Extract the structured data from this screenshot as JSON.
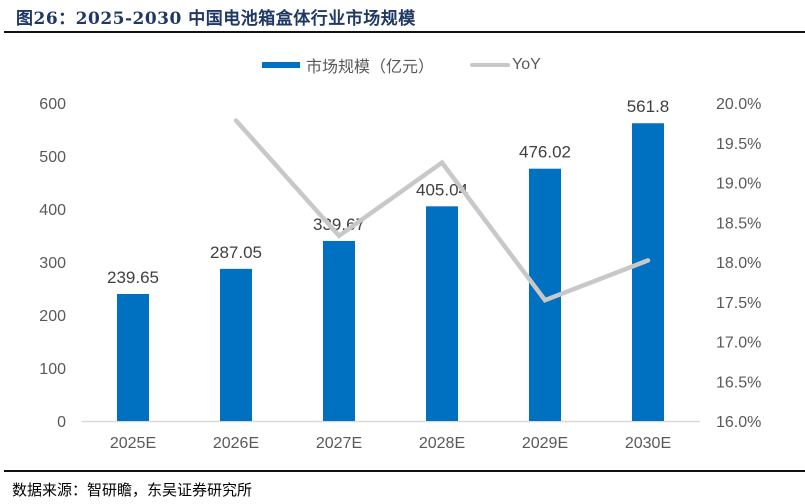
{
  "header": {
    "title": "图26：2025-2030 中国电池箱盒体行业市场规模"
  },
  "footer": {
    "source": "数据来源：智研瞻，东吴证券研究所"
  },
  "legend": {
    "items": [
      {
        "label": "市场规模（亿元）",
        "type": "bar",
        "color": "#0070c0"
      },
      {
        "label": "YoY",
        "type": "line",
        "color": "#c8c8c8"
      }
    ]
  },
  "colors": {
    "bar": "#0070c0",
    "line": "#c8c8c8",
    "axis_text": "#595959",
    "title": "#1f3864"
  },
  "chart_data": {
    "type": "bar",
    "title": "2025-2030 中国电池箱盒体行业市场规模",
    "categories": [
      "2025E",
      "2026E",
      "2027E",
      "2028E",
      "2029E",
      "2030E"
    ],
    "series": [
      {
        "name": "市场规模（亿元）",
        "type": "bar",
        "axis": "left",
        "values": [
          239.65,
          287.05,
          339.67,
          405.04,
          476.02,
          561.8
        ],
        "labels": [
          "239.65",
          "287.05",
          "339.67",
          "405.04",
          "476.02",
          "561.8"
        ]
      },
      {
        "name": "YoY",
        "type": "line",
        "axis": "right",
        "values": [
          null,
          0.1978,
          0.1833,
          0.1925,
          0.1752,
          0.1802
        ]
      }
    ],
    "y_left": {
      "min": 0,
      "max": 600,
      "ticks": [
        "0",
        "100",
        "200",
        "300",
        "400",
        "500",
        "600"
      ]
    },
    "y_right": {
      "min": 0.16,
      "max": 0.2,
      "ticks": [
        "16.0%",
        "16.5%",
        "17.0%",
        "17.5%",
        "18.0%",
        "18.5%",
        "19.0%",
        "19.5%",
        "20.0%"
      ]
    },
    "xlabel": "",
    "ylabel": "",
    "grid": false,
    "legend_position": "top"
  }
}
